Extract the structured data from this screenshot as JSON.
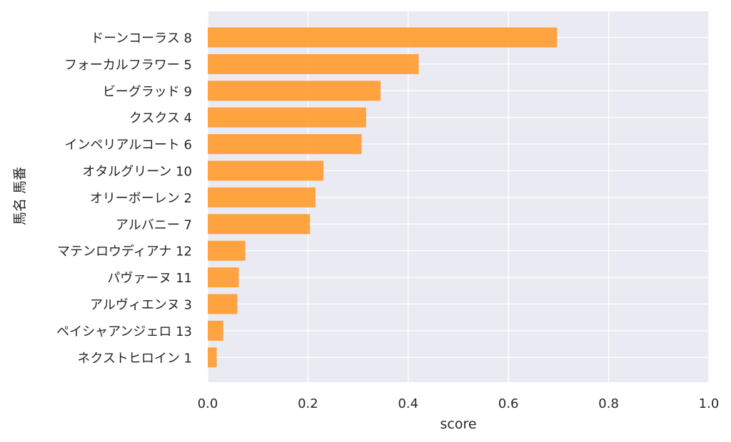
{
  "chart_data": {
    "type": "bar",
    "orientation": "horizontal",
    "categories": [
      "ドーンコーラス 8",
      "フォーカルフラワー 5",
      "ビーグラッド 9",
      "クスクス 4",
      "インペリアルコート 6",
      "オタルグリーン 10",
      "オリーボーレン 2",
      "アルバニー 7",
      "マテンロウディアナ 12",
      "パヴァーヌ 11",
      "アルヴィエンヌ 3",
      "ペイシャアンジェロ 13",
      "ネクストヒロイン 1"
    ],
    "values": [
      0.697,
      0.421,
      0.345,
      0.316,
      0.307,
      0.231,
      0.215,
      0.204,
      0.075,
      0.062,
      0.059,
      0.031,
      0.018
    ],
    "xlabel": "score",
    "ylabel": "馬名 馬番",
    "xlim": [
      0,
      1.0
    ],
    "xticks": [
      "0.0",
      "0.2",
      "0.4",
      "0.6",
      "0.8",
      "1.0"
    ],
    "grid": true,
    "colors": {
      "bar": "#ff9f36",
      "background": "#eaeaf2",
      "grid": "#ffffff",
      "text": "#262626"
    }
  }
}
